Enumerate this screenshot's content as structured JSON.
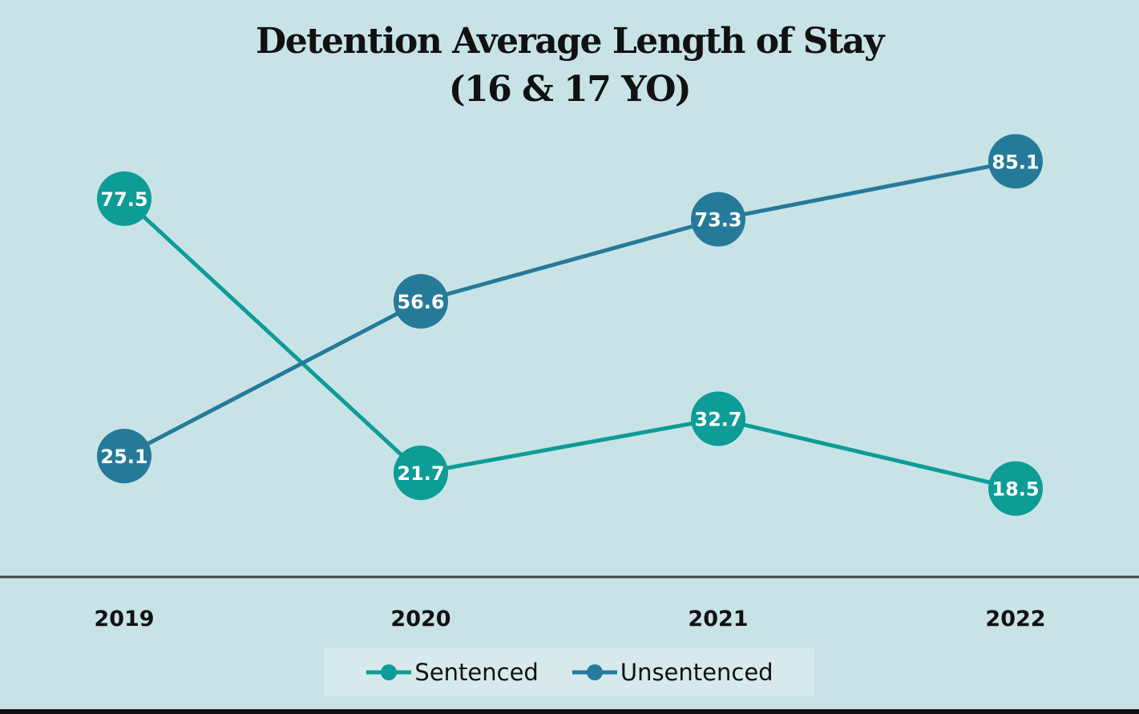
{
  "chart_data": {
    "type": "line",
    "title": "Detention Average Length of Stay",
    "subtitle": "(16 & 17 YO)",
    "categories": [
      "2019",
      "2020",
      "2021",
      "2022"
    ],
    "series": [
      {
        "name": "Sentenced",
        "values": [
          77.5,
          21.7,
          32.7,
          18.5
        ],
        "color": "#0d9c96"
      },
      {
        "name": "Unsentenced",
        "values": [
          25.1,
          56.6,
          73.3,
          85.1
        ],
        "color": "#267a99"
      }
    ],
    "xlabel": "",
    "ylabel": "",
    "ylim": [
      0,
      100
    ],
    "grid": false,
    "y_axis_visible": false,
    "data_labels": true,
    "legend": "bottom"
  }
}
